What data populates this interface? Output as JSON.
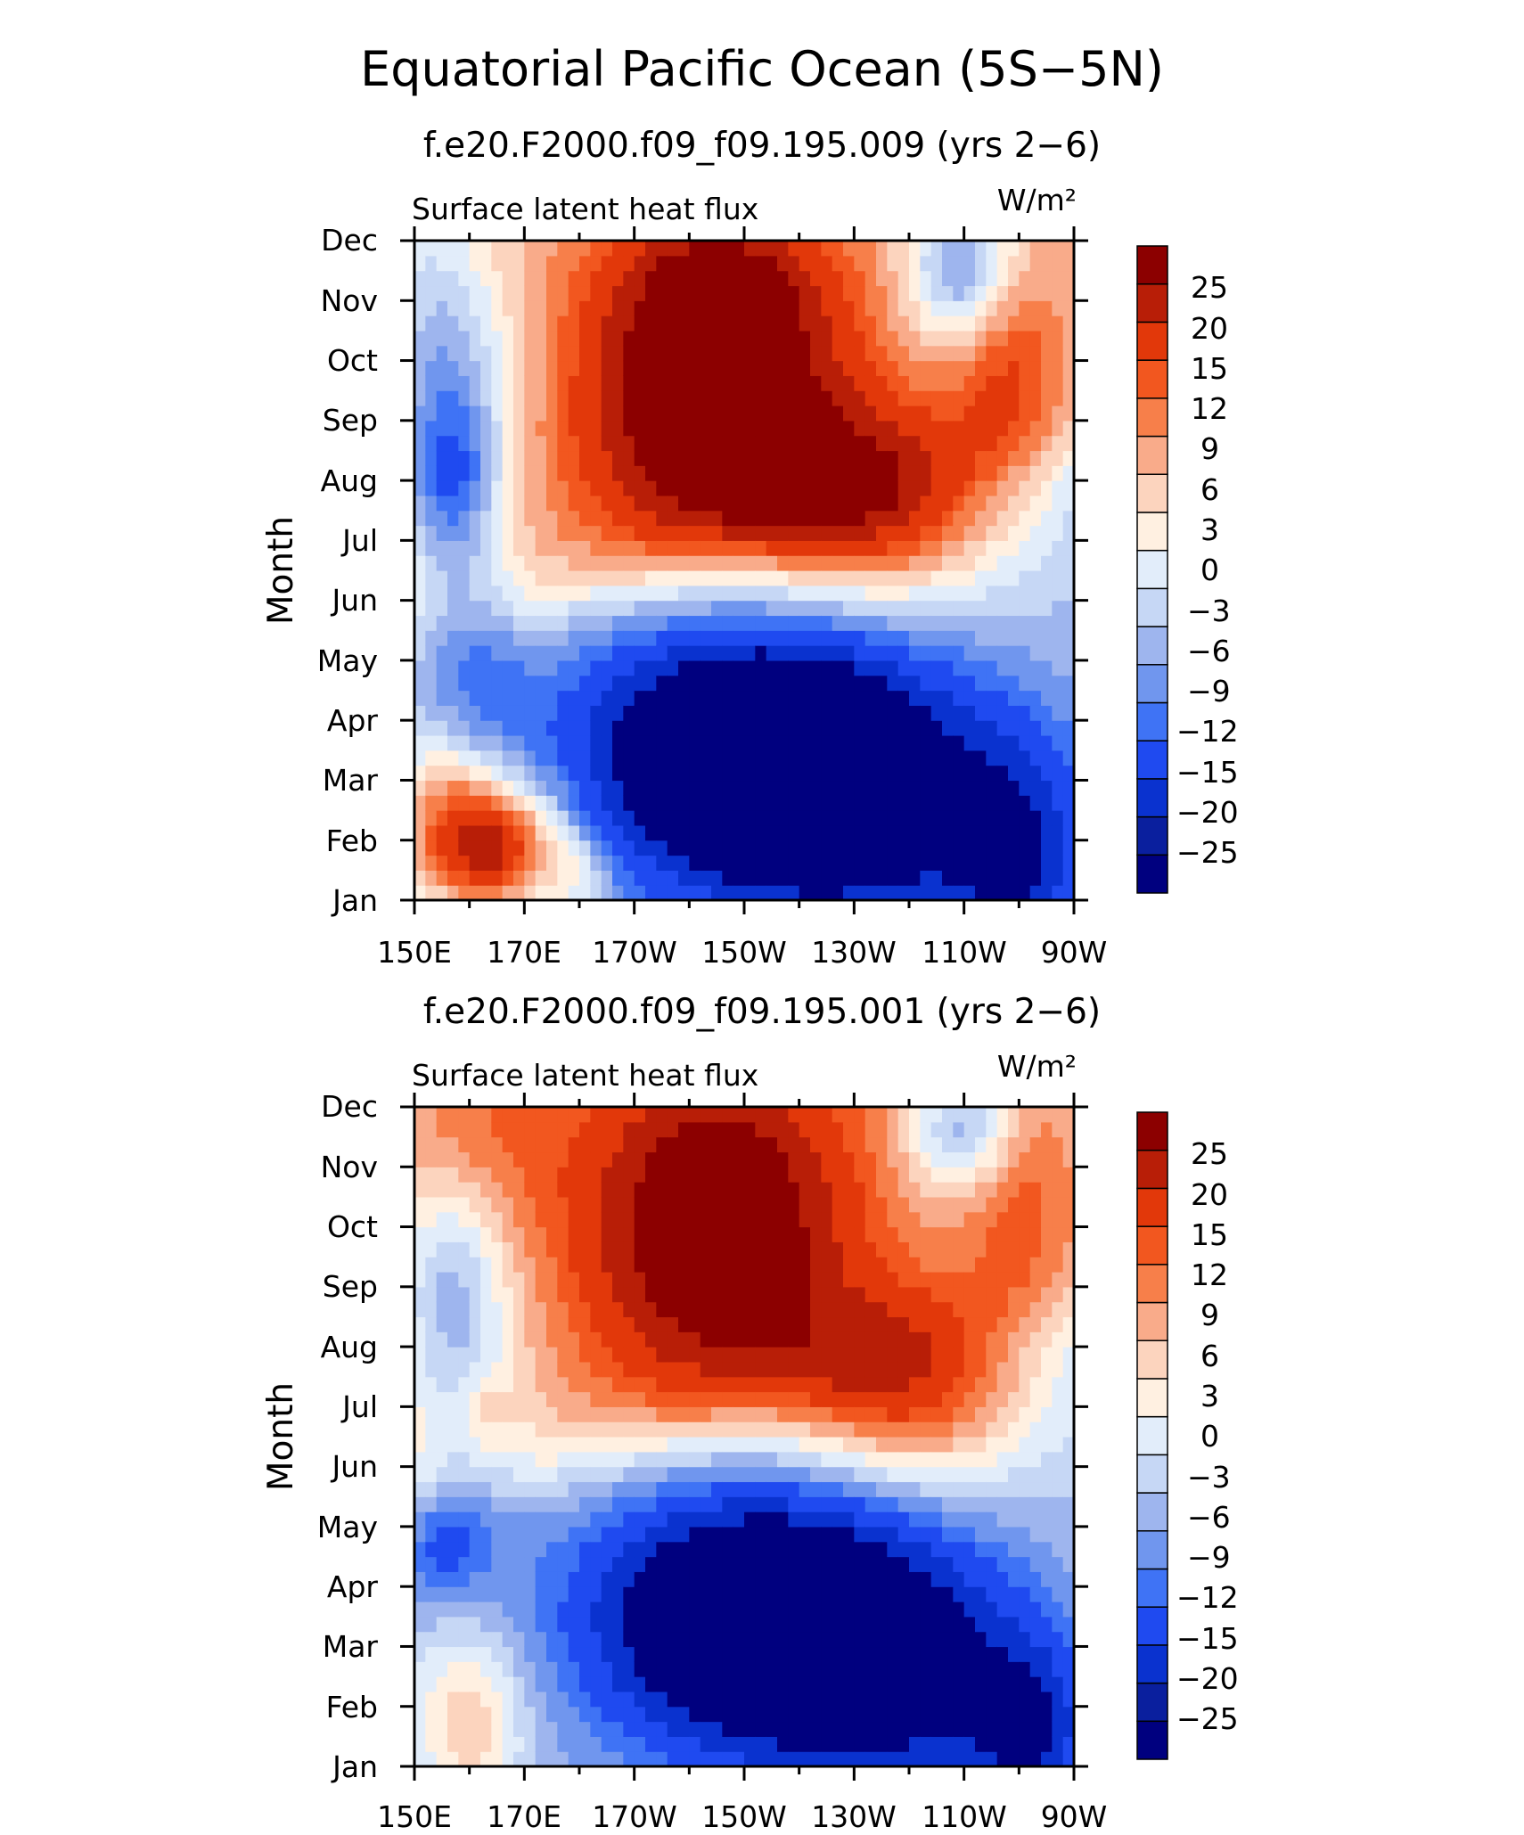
{
  "title": "Equatorial Pacific Ocean (5S−5N)",
  "colors": {
    "levels": [
      "#00007f",
      "#0a1f9e",
      "#0a32cf",
      "#1f4af0",
      "#3f73f5",
      "#7096ee",
      "#9eb5ee",
      "#c6d7f5",
      "#e2edfa",
      "#fff0e1",
      "#fcd4be",
      "#f9ab8a",
      "#f77f4a",
      "#f2571f",
      "#e2380a",
      "#b81e07",
      "#8c0000"
    ],
    "cbar_levels": [
      "#00007f",
      "#0a1f9e",
      "#0a32cf",
      "#1f4af0",
      "#3f73f5",
      "#7096ee",
      "#9eb5ee",
      "#c6d7f5",
      "#e2edfa",
      "#fff0e1",
      "#fcd4be",
      "#f9ab8a",
      "#f77f4a",
      "#f2571f",
      "#e2380a",
      "#b81e07",
      "#8c0000"
    ]
  },
  "chart_data": [
    {
      "type": "heatmap",
      "subtitle": "f.e20.F2000.f09_f09.195.009 (yrs 2−6)",
      "left_label": "Surface latent heat flux",
      "units_label": "W/m²",
      "ylabel": "Month",
      "xlabel": "",
      "x_tick_labels": [
        "150E",
        "170E",
        "170W",
        "150W",
        "130W",
        "110W",
        "90W"
      ],
      "y_tick_labels": [
        "Jan",
        "Feb",
        "Mar",
        "Apr",
        "May",
        "Jun",
        "Jul",
        "Aug",
        "Sep",
        "Oct",
        "Nov",
        "Dec"
      ],
      "colorbar_labels": [
        "25",
        "20",
        "15",
        "12",
        "9",
        "6",
        "3",
        "0",
        "−3",
        "−6",
        "−9",
        "−12",
        "−15",
        "−20",
        "−25"
      ],
      "contour_levels": [
        -30,
        -25,
        -20,
        -15,
        -12,
        -9,
        -6,
        -3,
        0,
        3,
        6,
        9,
        12,
        15,
        20,
        25,
        30
      ],
      "xlim": [
        150,
        270
      ],
      "ylim": [
        1,
        12
      ],
      "grid": false,
      "legend": "colorbar right",
      "features": [
        {
          "lon": 152,
          "month": 11.5,
          "amp": -6,
          "sx": 10,
          "sy": 4
        },
        {
          "lon": 158,
          "month": 9.5,
          "amp": -12,
          "sx": 12,
          "sy": 2.0
        },
        {
          "lon": 157,
          "month": 8.0,
          "amp": -13,
          "sx": 8,
          "sy": 1.2
        },
        {
          "lon": 158,
          "month": 6.0,
          "amp": -8,
          "sx": 10,
          "sy": 1.5
        },
        {
          "lon": 162,
          "month": 4.3,
          "amp": -5,
          "sx": 10,
          "sy": 1.2
        },
        {
          "lon": 165,
          "month": 1.9,
          "amp": 26,
          "sx": 12,
          "sy": 1.0
        },
        {
          "lon": 156,
          "month": 2.5,
          "amp": 12,
          "sx": 10,
          "sy": 1.5
        },
        {
          "lon": 180,
          "month": 1.4,
          "amp": 7,
          "sx": 6,
          "sy": 0.7
        },
        {
          "lon": 210,
          "month": 3.5,
          "amp": -34,
          "sx": 30,
          "sy": 2.2
        },
        {
          "lon": 235,
          "month": 2.5,
          "amp": -18,
          "sx": 30,
          "sy": 2.2
        },
        {
          "lon": 260,
          "month": 1.5,
          "amp": -14,
          "sx": 12,
          "sy": 2.0
        },
        {
          "lon": 205,
          "month": 9.0,
          "amp": 28,
          "sx": 25,
          "sy": 2.5
        },
        {
          "lon": 235,
          "month": 7.5,
          "amp": 22,
          "sx": 22,
          "sy": 1.5
        },
        {
          "lon": 205,
          "month": 11.3,
          "amp": 15,
          "sx": 20,
          "sy": 1.5
        },
        {
          "lon": 258,
          "month": 10.0,
          "amp": 10,
          "sx": 10,
          "sy": 2.0
        },
        {
          "lon": 250,
          "month": 11.5,
          "amp": -18,
          "sx": 10,
          "sy": 1.2
        }
      ]
    },
    {
      "type": "heatmap",
      "subtitle": "f.e20.F2000.f09_f09.195.001 (yrs 2−6)",
      "left_label": "Surface latent heat flux",
      "units_label": "W/m²",
      "ylabel": "Month",
      "xlabel": "",
      "x_tick_labels": [
        "150E",
        "170E",
        "170W",
        "150W",
        "130W",
        "110W",
        "90W"
      ],
      "y_tick_labels": [
        "Jan",
        "Feb",
        "Mar",
        "Apr",
        "May",
        "Jun",
        "Jul",
        "Aug",
        "Sep",
        "Oct",
        "Nov",
        "Dec"
      ],
      "colorbar_labels": [
        "25",
        "20",
        "15",
        "12",
        "9",
        "6",
        "3",
        "0",
        "−3",
        "−6",
        "−9",
        "−12",
        "−15",
        "−20",
        "−25"
      ],
      "contour_levels": [
        -30,
        -25,
        -20,
        -15,
        -12,
        -9,
        -6,
        -3,
        0,
        3,
        6,
        9,
        12,
        15,
        20,
        25,
        30
      ],
      "xlim": [
        150,
        270
      ],
      "ylim": [
        1,
        12
      ],
      "grid": false,
      "legend": "colorbar right",
      "features": [
        {
          "lon": 157,
          "month": 9.0,
          "amp": -12,
          "sx": 10,
          "sy": 2.0
        },
        {
          "lon": 155,
          "month": 4.8,
          "amp": -9,
          "sx": 8,
          "sy": 1.0
        },
        {
          "lon": 160,
          "month": 6.5,
          "amp": -5,
          "sx": 12,
          "sy": 2.5
        },
        {
          "lon": 160,
          "month": 1.8,
          "amp": 12,
          "sx": 10,
          "sy": 1.5
        },
        {
          "lon": 162,
          "month": 11.5,
          "amp": 6,
          "sx": 15,
          "sy": 1.5
        },
        {
          "lon": 163,
          "month": 7.0,
          "amp": 5,
          "sx": 4,
          "sy": 0.6
        },
        {
          "lon": 212,
          "month": 3.5,
          "amp": -36,
          "sx": 30,
          "sy": 2.2
        },
        {
          "lon": 240,
          "month": 2.5,
          "amp": -18,
          "sx": 25,
          "sy": 2.0
        },
        {
          "lon": 262,
          "month": 1.5,
          "amp": -16,
          "sx": 10,
          "sy": 1.5
        },
        {
          "lon": 205,
          "month": 10.0,
          "amp": 28,
          "sx": 25,
          "sy": 3.0
        },
        {
          "lon": 240,
          "month": 7.3,
          "amp": 22,
          "sx": 22,
          "sy": 1.5
        },
        {
          "lon": 260,
          "month": 10.5,
          "amp": 8,
          "sx": 10,
          "sy": 2.0
        },
        {
          "lon": 250,
          "month": 11.6,
          "amp": -15,
          "sx": 10,
          "sy": 1.0
        }
      ]
    }
  ]
}
